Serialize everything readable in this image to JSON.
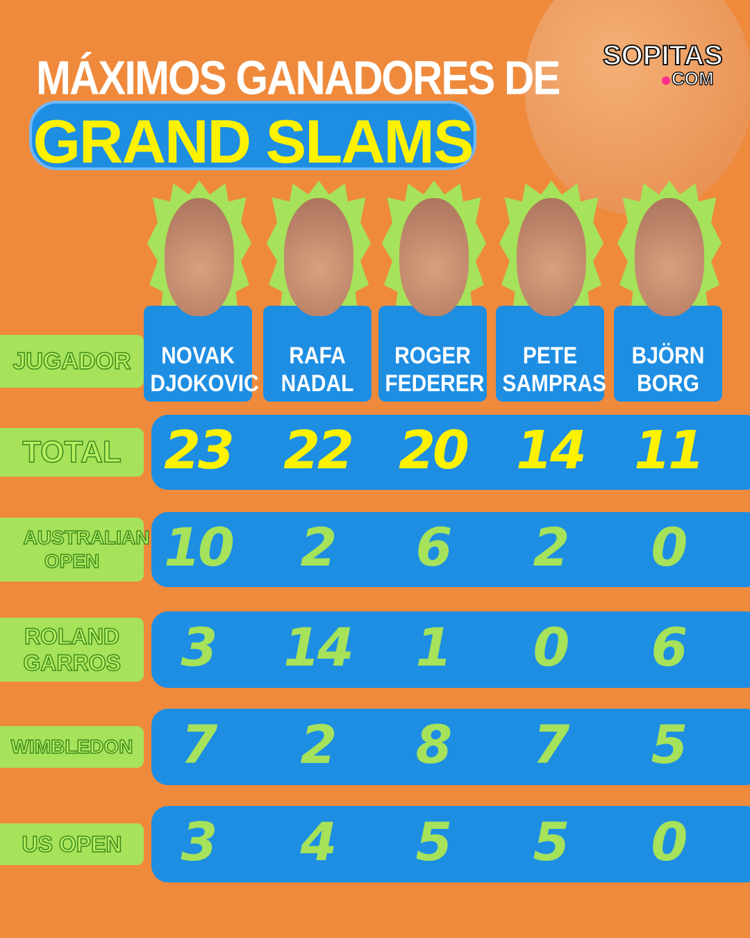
{
  "header": {
    "title_line1": "MÁXIMOS GANADORES DE",
    "title_line2": "GRAND SLAMS"
  },
  "logo": {
    "main": "SOPITAS",
    "sub": "COM"
  },
  "colors": {
    "background": "#ef8a3c",
    "band": "#1e8ee3",
    "label": "#a6e25a",
    "total": "#fff200",
    "accent": "#ff2e8a"
  },
  "players": [
    {
      "line1": "NOVAK",
      "line2": "DJOKOVIC"
    },
    {
      "line1": "RAFA",
      "line2": "NADAL"
    },
    {
      "line1": "ROGER",
      "line2": "FEDERER"
    },
    {
      "line1": "PETE",
      "line2": "SAMPRAS"
    },
    {
      "line1": "BJÖRN",
      "line2": "BORG"
    }
  ],
  "chart_data": {
    "type": "table",
    "row_header": "JUGADOR",
    "columns": [
      "NOVAK DJOKOVIC",
      "RAFA NADAL",
      "ROGER FEDERER",
      "PETE SAMPRAS",
      "BJÖRN BORG"
    ],
    "rows": [
      {
        "label": "TOTAL",
        "values": [
          23,
          22,
          20,
          14,
          11
        ]
      },
      {
        "label": "AUSTRALIAN OPEN",
        "values": [
          10,
          2,
          6,
          2,
          0
        ]
      },
      {
        "label": "ROLAND GARROS",
        "values": [
          3,
          14,
          1,
          0,
          6
        ]
      },
      {
        "label": "WIMBLEDON",
        "values": [
          7,
          2,
          8,
          7,
          5
        ]
      },
      {
        "label": "US OPEN",
        "values": [
          3,
          4,
          5,
          5,
          0
        ]
      }
    ]
  }
}
